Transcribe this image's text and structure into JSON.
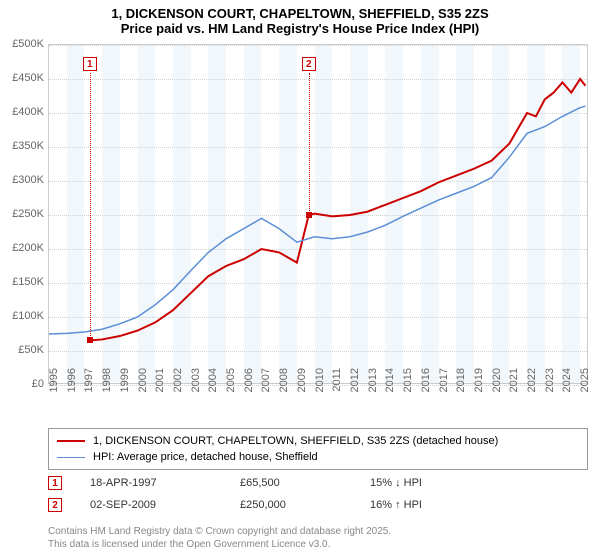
{
  "title_line1": "1, DICKENSON COURT, CHAPELTOWN, SHEFFIELD, S35 2ZS",
  "title_line2": "Price paid vs. HM Land Registry's House Price Index (HPI)",
  "chart": {
    "type": "line",
    "background_color": "#ffffff",
    "grid_color": "#d0d0d0",
    "band_color": "#e8f0f8",
    "xlim": [
      1995,
      2025.5
    ],
    "ylim": [
      0,
      500000
    ],
    "ytick_step": 50000,
    "yticks": [
      "£0",
      "£50K",
      "£100K",
      "£150K",
      "£200K",
      "£250K",
      "£300K",
      "£350K",
      "£400K",
      "£450K",
      "£500K"
    ],
    "xticks": [
      1995,
      1996,
      1997,
      1998,
      1999,
      2000,
      2001,
      2002,
      2003,
      2004,
      2005,
      2006,
      2007,
      2008,
      2009,
      2010,
      2011,
      2012,
      2013,
      2014,
      2015,
      2016,
      2017,
      2018,
      2019,
      2020,
      2021,
      2022,
      2023,
      2024,
      2025
    ],
    "axis_fontsize": 11,
    "axis_color": "#666666",
    "series": [
      {
        "name": "1, DICKENSON COURT, CHAPELTOWN, SHEFFIELD, S35 2ZS (detached house)",
        "color": "#cc0000",
        "line_width": 2.0,
        "x": [
          1997.3,
          1998,
          1999,
          2000,
          2001,
          2002,
          2003,
          2004,
          2005,
          2006,
          2007,
          2008,
          2009,
          2009.67,
          2010,
          2011,
          2012,
          2013,
          2014,
          2015,
          2016,
          2017,
          2018,
          2019,
          2020,
          2021,
          2022,
          2022.5,
          2023,
          2023.5,
          2024,
          2024.5,
          2025,
          2025.3
        ],
        "y": [
          65500,
          67000,
          72000,
          80000,
          92000,
          110000,
          135000,
          160000,
          175000,
          185000,
          200000,
          195000,
          180000,
          250000,
          252000,
          248000,
          250000,
          255000,
          265000,
          275000,
          285000,
          298000,
          308000,
          318000,
          330000,
          355000,
          400000,
          395000,
          420000,
          430000,
          445000,
          430000,
          450000,
          440000
        ]
      },
      {
        "name": "HPI: Average price, detached house, Sheffield",
        "color": "#5b8fd6",
        "line_width": 1.5,
        "x": [
          1995,
          1996,
          1997,
          1998,
          1999,
          2000,
          2001,
          2002,
          2003,
          2004,
          2005,
          2006,
          2007,
          2008,
          2009,
          2010,
          2011,
          2012,
          2013,
          2014,
          2015,
          2016,
          2017,
          2018,
          2019,
          2020,
          2021,
          2022,
          2023,
          2024,
          2025,
          2025.3
        ],
        "y": [
          75000,
          76000,
          78000,
          82000,
          90000,
          100000,
          118000,
          140000,
          168000,
          195000,
          215000,
          230000,
          245000,
          230000,
          210000,
          218000,
          215000,
          218000,
          225000,
          235000,
          248000,
          260000,
          272000,
          282000,
          292000,
          305000,
          335000,
          370000,
          380000,
          395000,
          408000,
          410000
        ]
      }
    ],
    "markers": [
      {
        "n": "1",
        "x": 1997.3,
        "y": 65500,
        "date": "18-APR-1997",
        "price": "£65,500",
        "delta": "15% ↓ HPI"
      },
      {
        "n": "2",
        "x": 2009.67,
        "y": 250000,
        "date": "02-SEP-2009",
        "price": "£250,000",
        "delta": "16% ↑ HPI"
      }
    ]
  },
  "legend": {
    "items": [
      {
        "label": "1, DICKENSON COURT, CHAPELTOWN, SHEFFIELD, S35 2ZS (detached house)",
        "color": "#cc0000",
        "width": 2
      },
      {
        "label": "HPI: Average price, detached house, Sheffield",
        "color": "#5b8fd6",
        "width": 1.5
      }
    ]
  },
  "footnote_line1": "Contains HM Land Registry data © Crown copyright and database right 2025.",
  "footnote_line2": "This data is licensed under the Open Government Licence v3.0."
}
